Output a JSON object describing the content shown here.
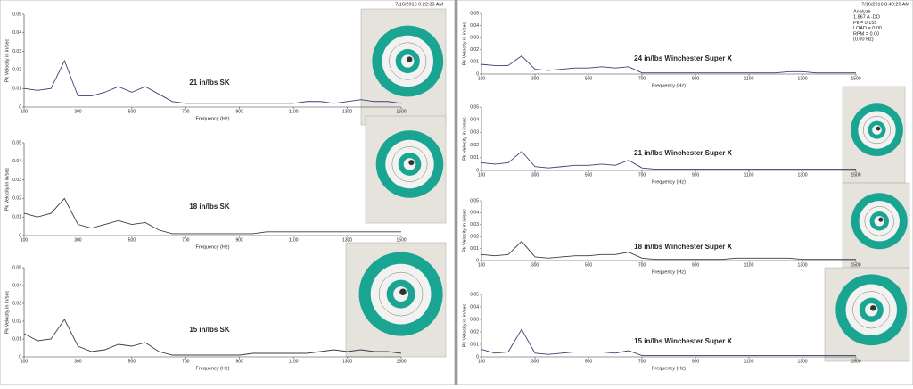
{
  "chart_data": [
    {
      "type": "line",
      "timestamp": "7/16/2016 9:22:33 AM",
      "annotation": "21 in/lbs SK",
      "ylabel": "Pk Velocity in in/sec",
      "xlabel": "Frequency (Hz)",
      "xlim": [
        100,
        1500
      ],
      "ylim": [
        0,
        0.05
      ],
      "xticks": [
        100,
        300,
        500,
        700,
        900,
        1100,
        1300,
        1500
      ],
      "yticks": [
        0,
        0.01,
        0.02,
        0.03,
        0.04,
        0.05
      ],
      "color": "#3b3f73",
      "x": [
        100,
        150,
        200,
        250,
        300,
        350,
        400,
        450,
        500,
        550,
        600,
        650,
        700,
        750,
        800,
        850,
        900,
        950,
        1000,
        1050,
        1100,
        1150,
        1200,
        1250,
        1300,
        1350,
        1400,
        1450,
        1500
      ],
      "values": [
        0.01,
        0.009,
        0.01,
        0.025,
        0.006,
        0.006,
        0.008,
        0.011,
        0.008,
        0.011,
        0.007,
        0.003,
        0.002,
        0.002,
        0.002,
        0.002,
        0.002,
        0.002,
        0.002,
        0.002,
        0.002,
        0.003,
        0.003,
        0.002,
        0.003,
        0.004,
        0.003,
        0.003,
        0.002
      ]
    },
    {
      "type": "line",
      "annotation": "18 in/lbs SK",
      "ylabel": "Pk Velocity in in/sec",
      "xlabel": "Frequency (Hz)",
      "xlim": [
        100,
        1500
      ],
      "ylim": [
        0,
        0.05
      ],
      "xticks": [
        100,
        300,
        500,
        700,
        900,
        1100,
        1300,
        1500
      ],
      "yticks": [
        0,
        0.01,
        0.02,
        0.03,
        0.04,
        0.05
      ],
      "color": "#3b3b4a",
      "x": [
        100,
        150,
        200,
        250,
        300,
        350,
        400,
        450,
        500,
        550,
        600,
        650,
        700,
        750,
        800,
        850,
        900,
        950,
        1000,
        1050,
        1100,
        1150,
        1200,
        1250,
        1300,
        1350,
        1400,
        1450,
        1500
      ],
      "values": [
        0.012,
        0.01,
        0.012,
        0.02,
        0.006,
        0.004,
        0.006,
        0.008,
        0.006,
        0.007,
        0.003,
        0.001,
        0.001,
        0.001,
        0.001,
        0.001,
        0.001,
        0.001,
        0.002,
        0.002,
        0.002,
        0.002,
        0.002,
        0.002,
        0.002,
        0.002,
        0.002,
        0.002,
        0.002
      ]
    },
    {
      "type": "line",
      "annotation": "15 in/lbs SK",
      "ylabel": "Pk Velocity in in/sec",
      "xlabel": "Frequency (Hz)",
      "xlim": [
        100,
        1500
      ],
      "ylim": [
        0,
        0.05
      ],
      "xticks": [
        100,
        300,
        500,
        700,
        900,
        1100,
        1300,
        1500
      ],
      "yticks": [
        0,
        0.01,
        0.02,
        0.03,
        0.04,
        0.05
      ],
      "color": "#3b3b4a",
      "x": [
        100,
        150,
        200,
        250,
        300,
        350,
        400,
        450,
        500,
        550,
        600,
        650,
        700,
        750,
        800,
        850,
        900,
        950,
        1000,
        1050,
        1100,
        1150,
        1200,
        1250,
        1300,
        1350,
        1400,
        1450,
        1500
      ],
      "values": [
        0.013,
        0.009,
        0.01,
        0.021,
        0.006,
        0.003,
        0.004,
        0.007,
        0.006,
        0.008,
        0.003,
        0.001,
        0.001,
        0.001,
        0.001,
        0.001,
        0.001,
        0.002,
        0.002,
        0.002,
        0.002,
        0.002,
        0.003,
        0.004,
        0.003,
        0.004,
        0.003,
        0.003,
        0.002
      ]
    },
    {
      "type": "line",
      "timestamp": "7/16/2016 8:40:29 AM",
      "info": [
        "Analyze",
        "1.867 A -DO",
        "Pk = 0.155",
        "LOAD = 0.00",
        "RPM = 0.00",
        "(0.00 Hz)"
      ],
      "annotation": "24 in/lbs Winchester Super X",
      "ylabel": "Pk Velocity in in/sec",
      "xlabel": "Frequency (Hz)",
      "xlim": [
        100,
        1500
      ],
      "ylim": [
        0,
        0.05
      ],
      "xticks": [
        100,
        300,
        500,
        700,
        900,
        1100,
        1300,
        1500
      ],
      "yticks": [
        0,
        0.01,
        0.02,
        0.03,
        0.04,
        0.05
      ],
      "color": "#3b3f73",
      "x": [
        100,
        150,
        200,
        250,
        300,
        350,
        400,
        450,
        500,
        550,
        600,
        650,
        700,
        750,
        800,
        850,
        900,
        950,
        1000,
        1050,
        1100,
        1150,
        1200,
        1250,
        1300,
        1350,
        1400,
        1450,
        1500
      ],
      "values": [
        0.008,
        0.007,
        0.007,
        0.015,
        0.004,
        0.003,
        0.004,
        0.005,
        0.005,
        0.006,
        0.005,
        0.006,
        0.001,
        0.001,
        0.001,
        0.001,
        0.001,
        0.001,
        0.001,
        0.001,
        0.001,
        0.001,
        0.001,
        0.002,
        0.002,
        0.001,
        0.001,
        0.001,
        0.001
      ]
    },
    {
      "type": "line",
      "annotation": "21 in/lbs Winchester Super X",
      "ylabel": "Pk Velocity in in/sec",
      "xlabel": "Frequency (Hz)",
      "xlim": [
        100,
        1500
      ],
      "ylim": [
        0,
        0.05
      ],
      "xticks": [
        100,
        300,
        500,
        700,
        900,
        1100,
        1300,
        1500
      ],
      "yticks": [
        0,
        0.01,
        0.02,
        0.03,
        0.04,
        0.05
      ],
      "color": "#3b3f73",
      "x": [
        100,
        150,
        200,
        250,
        300,
        350,
        400,
        450,
        500,
        550,
        600,
        650,
        700,
        750,
        800,
        850,
        900,
        950,
        1000,
        1050,
        1100,
        1150,
        1200,
        1250,
        1300,
        1350,
        1400,
        1450,
        1500
      ],
      "values": [
        0.006,
        0.005,
        0.006,
        0.015,
        0.003,
        0.002,
        0.003,
        0.004,
        0.004,
        0.005,
        0.004,
        0.008,
        0.002,
        0.001,
        0.001,
        0.001,
        0.001,
        0.001,
        0.001,
        0.001,
        0.001,
        0.001,
        0.001,
        0.001,
        0.001,
        0.001,
        0.001,
        0.001,
        0.001
      ]
    },
    {
      "type": "line",
      "annotation": "18 in/lbs Winchester Super X",
      "ylabel": "Pk Velocity in in/sec",
      "xlabel": "Frequency (Hz)",
      "xlim": [
        100,
        1500
      ],
      "ylim": [
        0,
        0.05
      ],
      "xticks": [
        100,
        300,
        500,
        700,
        900,
        1100,
        1300,
        1500
      ],
      "yticks": [
        0,
        0.01,
        0.02,
        0.03,
        0.04,
        0.05
      ],
      "color": "#3b3b4a",
      "x": [
        100,
        150,
        200,
        250,
        300,
        350,
        400,
        450,
        500,
        550,
        600,
        650,
        700,
        750,
        800,
        850,
        900,
        950,
        1000,
        1050,
        1100,
        1150,
        1200,
        1250,
        1300,
        1350,
        1400,
        1450,
        1500
      ],
      "values": [
        0.005,
        0.004,
        0.005,
        0.016,
        0.003,
        0.002,
        0.003,
        0.004,
        0.004,
        0.005,
        0.005,
        0.007,
        0.002,
        0.001,
        0.001,
        0.001,
        0.001,
        0.001,
        0.001,
        0.002,
        0.002,
        0.002,
        0.002,
        0.002,
        0.001,
        0.001,
        0.001,
        0.001,
        0.001
      ]
    },
    {
      "type": "line",
      "annotation": "15 in/lbs Winchester Super X",
      "ylabel": "Pk Velocity in in/sec",
      "xlabel": "Frequency (Hz)",
      "xlim": [
        100,
        1500
      ],
      "ylim": [
        0,
        0.05
      ],
      "xticks": [
        100,
        300,
        500,
        700,
        900,
        1100,
        1300,
        1500
      ],
      "yticks": [
        0,
        0.01,
        0.02,
        0.03,
        0.04,
        0.05
      ],
      "color": "#3b3f73",
      "x": [
        100,
        150,
        200,
        250,
        300,
        350,
        400,
        450,
        500,
        550,
        600,
        650,
        700,
        750,
        800,
        850,
        900,
        950,
        1000,
        1050,
        1100,
        1150,
        1200,
        1250,
        1300,
        1350,
        1400,
        1450,
        1500
      ],
      "values": [
        0.006,
        0.003,
        0.004,
        0.022,
        0.003,
        0.002,
        0.003,
        0.004,
        0.004,
        0.004,
        0.003,
        0.005,
        0.001,
        0.001,
        0.001,
        0.001,
        0.001,
        0.001,
        0.001,
        0.001,
        0.001,
        0.001,
        0.001,
        0.001,
        0.001,
        0.001,
        0.001,
        0.001,
        0.001
      ]
    }
  ]
}
